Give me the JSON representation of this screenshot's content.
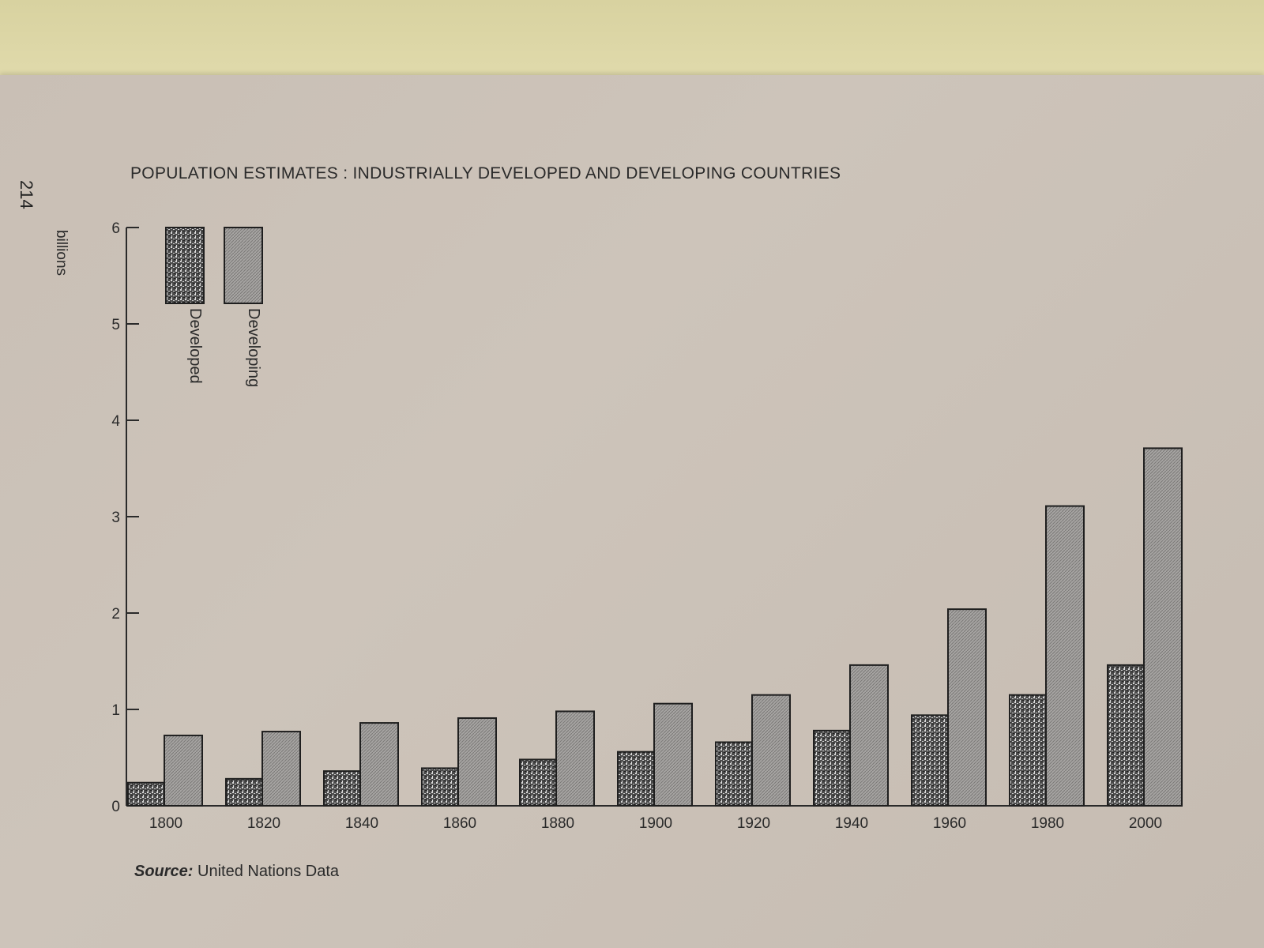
{
  "page_number": "214",
  "source": {
    "lead": "Source:",
    "text": "United Nations Data"
  },
  "colors": {
    "developed": "#5a5a5a",
    "developing": "#9a9a9a",
    "paper": "#cac0b6",
    "ink": "#2a2a2a"
  },
  "chart_data": {
    "type": "bar",
    "title": "POPULATION ESTIMATES : INDUSTRIALLY DEVELOPED AND DEVELOPING COUNTRIES",
    "ylabel": "billions",
    "xlabel": "",
    "ylim": [
      0,
      6
    ],
    "yticks": [
      "0",
      "1",
      "2",
      "3",
      "4",
      "5",
      "6"
    ],
    "categories": [
      "1800",
      "1820",
      "1840",
      "1860",
      "1880",
      "1900",
      "1920",
      "1940",
      "1960",
      "1980",
      "2000"
    ],
    "series": [
      {
        "name": "Developed",
        "values": [
          0.24,
          0.28,
          0.36,
          0.39,
          0.48,
          0.56,
          0.66,
          0.78,
          0.94,
          1.15,
          1.46
        ]
      },
      {
        "name": "Developing",
        "values": [
          0.73,
          0.77,
          0.86,
          0.91,
          0.98,
          1.06,
          1.15,
          1.46,
          2.04,
          3.11,
          3.71
        ]
      }
    ],
    "legend": "top-left, rotated",
    "grid": false
  }
}
